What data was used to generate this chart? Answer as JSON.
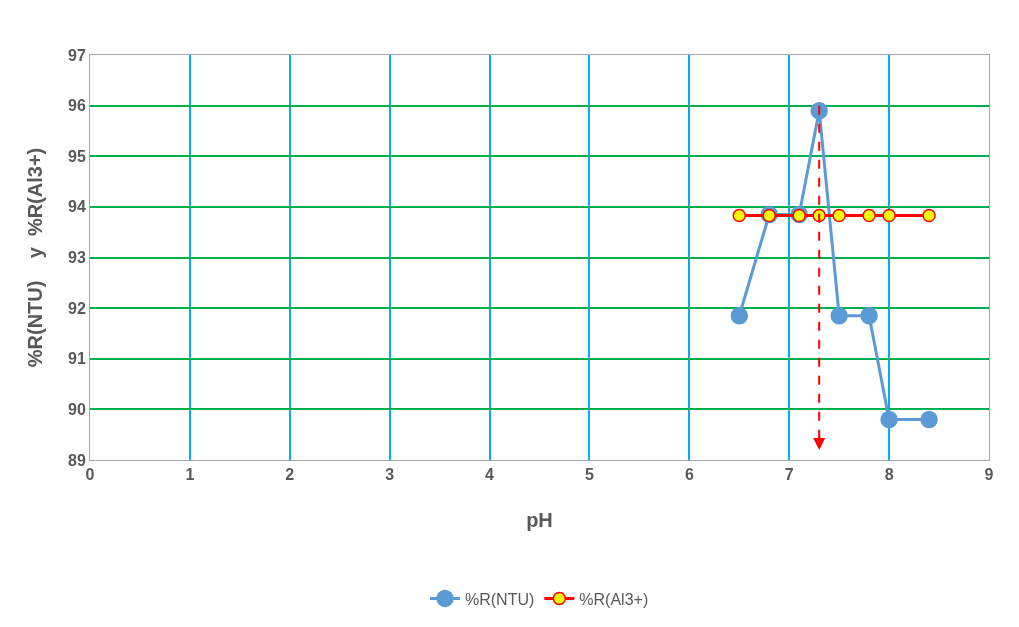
{
  "chart_data": {
    "type": "line",
    "xlabel": "pH",
    "ylabel": "%R(NTU)    y  %R(Al3+)",
    "xlim": [
      0,
      9
    ],
    "xticks": [
      0,
      1,
      2,
      3,
      4,
      5,
      6,
      7,
      8,
      9
    ],
    "ylim": [
      89,
      97
    ],
    "yticks": [
      89,
      90,
      91,
      92,
      93,
      94,
      95,
      96,
      97
    ],
    "grid": true,
    "legend": "bottom",
    "marker": "circle",
    "line_style": "solid",
    "series": [
      {
        "name": "%R(NTU)",
        "color": "#5b9bd5",
        "x": [
          6.5,
          6.8,
          7.1,
          7.3,
          7.5,
          7.8,
          8.0,
          8.4
        ],
        "values": [
          91.85,
          93.85,
          93.85,
          95.9,
          91.85,
          91.85,
          89.8,
          89.8
        ]
      },
      {
        "name": "%R(Al3+)",
        "color": "#ff0000",
        "x": [
          6.5,
          6.8,
          7.1,
          7.3,
          7.5,
          7.8,
          8.0,
          8.4
        ],
        "values": [
          93.83,
          93.83,
          93.83,
          93.83,
          93.83,
          93.83,
          93.83,
          93.83
        ]
      }
    ],
    "ref_lines": [
      {
        "axis": "x",
        "value": 7.3,
        "color": "#ff0000",
        "line_style": "dashed"
      }
    ]
  }
}
